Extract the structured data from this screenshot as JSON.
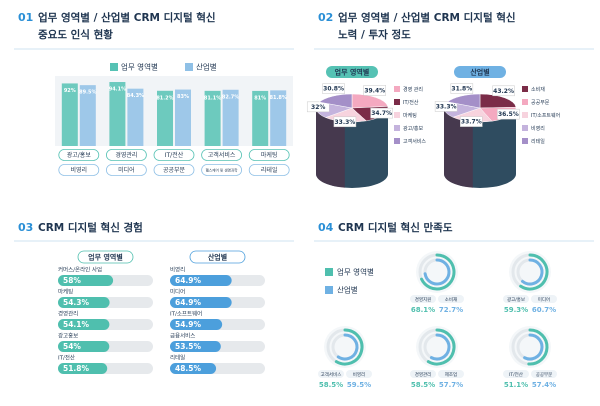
{
  "chart_data": [
    {
      "type": "bar",
      "number": "01",
      "title": "업무 영역별 / 산업별 CRM 디지털 혁신",
      "subtitle": "중요도 인식 현황",
      "ylim": [
        0,
        100
      ],
      "series": [
        {
          "name": "업무 영역별",
          "color": "#56c2b4",
          "categories": [
            "광고/홍보",
            "경영관리",
            "IT/전산",
            "고객서비스",
            "마케팅"
          ],
          "values": [
            92,
            94.1,
            81.2,
            81.1,
            81
          ],
          "value_labels": [
            "92%",
            "94.1%",
            "81.2%",
            "81.1%",
            "81%"
          ]
        },
        {
          "name": "산업별",
          "color": "#8fc0e6",
          "categories": [
            "비영리",
            "미디어",
            "공공부문",
            "헬스케어 및 생명과학",
            "리테일"
          ],
          "values": [
            89.5,
            84.3,
            83,
            82.7,
            81.8
          ],
          "value_labels": [
            "89.5%",
            "84.3%",
            "83%",
            "82.7%",
            "81.8%"
          ]
        }
      ]
    },
    {
      "type": "pie",
      "number": "02",
      "title": "업무 영역별 / 산업별 CRM 디지털 혁신",
      "subtitle": "노력 / 투자 정도",
      "pies": [
        {
          "name": "업무 영역별",
          "color": "#56c2b4",
          "categories": [
            "경영 관리",
            "IT/전산",
            "마케팅",
            "광고/홍보",
            "고객서비스"
          ],
          "values": [
            39.4,
            34.7,
            33.3,
            32,
            30.8
          ],
          "value_labels": [
            "39.4%",
            "34.7%",
            "33.3%",
            "32%",
            "30.8%"
          ],
          "colors": [
            "#f4a9c0",
            "#7b2c48",
            "#f7d3de",
            "#c4b3dd",
            "#a48fc8"
          ]
        },
        {
          "name": "산업별",
          "color": "#6fb1e3",
          "categories": [
            "소비재",
            "공공부문",
            "IT/소프트웨어",
            "비영리",
            "리테일"
          ],
          "values": [
            43.2,
            36.5,
            33.7,
            33.3,
            31.8
          ],
          "value_labels": [
            "43.2%",
            "36.5%",
            "33.7%",
            "33.3%",
            "31.8%"
          ],
          "colors": [
            "#7b2c48",
            "#f4a9c0",
            "#f7d3de",
            "#c4b3dd",
            "#a48fc8"
          ]
        }
      ]
    },
    {
      "type": "hbar",
      "number": "03",
      "title": "CRM 디지털 혁신 경험",
      "xlim": [
        0,
        100
      ],
      "series": [
        {
          "name": "업무 영역별",
          "color": "#4fbfae",
          "categories": [
            "커머스/온라인 사업",
            "마케팅",
            "경영관리",
            "광고홍보",
            "IT/전산"
          ],
          "values": [
            58,
            54.3,
            54.1,
            54,
            51.8
          ],
          "value_labels": [
            "58%",
            "54.3%",
            "54.1%",
            "54%",
            "51.8%"
          ]
        },
        {
          "name": "산업별",
          "color": "#4c9fdc",
          "categories": [
            "비영리",
            "미디어",
            "IT/소프트웨어",
            "금융서비스",
            "리테일"
          ],
          "values": [
            64.9,
            64.9,
            54.9,
            53.5,
            48.5
          ],
          "value_labels": [
            "64.9%",
            "64.9%",
            "54.9%",
            "53.5%",
            "48.5%"
          ]
        }
      ]
    },
    {
      "type": "ring",
      "number": "04",
      "title": "CRM 디지털 혁신 만족도",
      "ylim": [
        0,
        100
      ],
      "series": [
        {
          "name": "업무 영역별",
          "color": "#4fbfae",
          "categories": [
            "경영지원",
            "광고/홍보",
            "고객서비스",
            "경영관리",
            "IT/전산"
          ],
          "values": [
            68.1,
            59.3,
            58.5,
            58.5,
            51.1
          ],
          "value_labels": [
            "68.1%",
            "59.3%",
            "58.5%",
            "58.5%",
            "51.1%"
          ]
        },
        {
          "name": "산업별",
          "color": "#6fb1e3",
          "categories": [
            "소비재",
            "미디어",
            "비영리",
            "제조업",
            "공공부문"
          ],
          "values": [
            72.7,
            60.7,
            59.5,
            57.7,
            57.4
          ],
          "value_labels": [
            "72.7%",
            "60.7%",
            "59.5%",
            "57.7%",
            "57.4%"
          ]
        }
      ]
    }
  ]
}
